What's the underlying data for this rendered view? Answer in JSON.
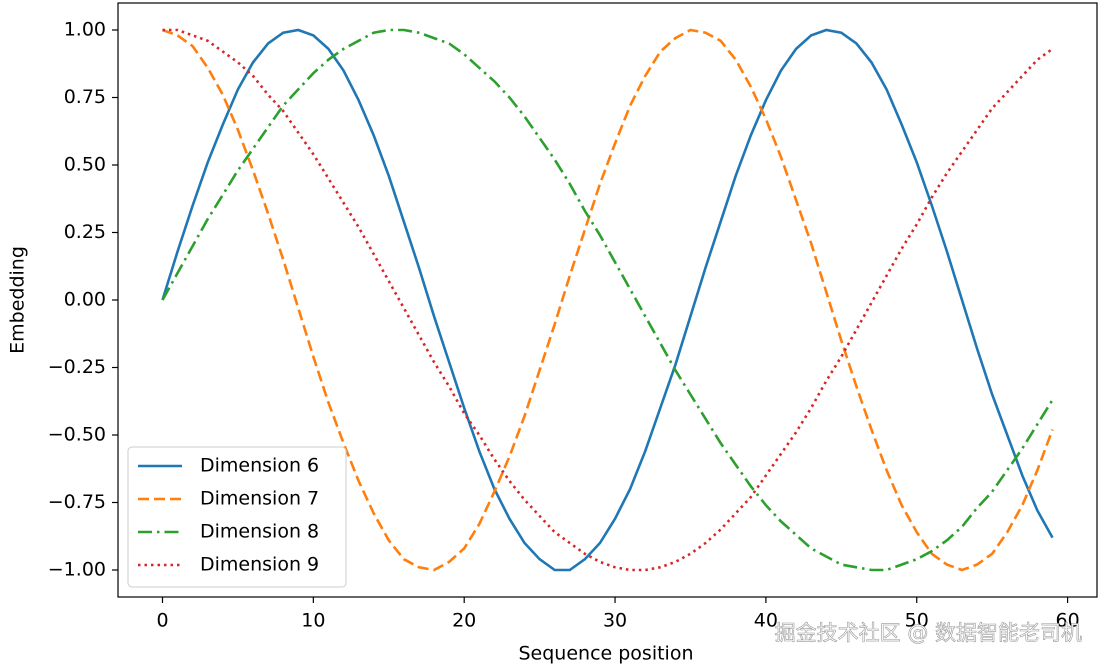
{
  "chart_data": {
    "type": "line",
    "xlabel": "Sequence position",
    "ylabel": "Embedding",
    "x": [
      0,
      1,
      2,
      3,
      4,
      5,
      6,
      7,
      8,
      9,
      10,
      11,
      12,
      13,
      14,
      15,
      16,
      17,
      18,
      19,
      20,
      21,
      22,
      23,
      24,
      25,
      26,
      27,
      28,
      29,
      30,
      31,
      32,
      33,
      34,
      35,
      36,
      37,
      38,
      39,
      40,
      41,
      42,
      43,
      44,
      45,
      46,
      47,
      48,
      49,
      50,
      51,
      52,
      53,
      54,
      55,
      56,
      57,
      58,
      59
    ],
    "series": [
      {
        "name": "Dimension 6",
        "color": "#1f77b4",
        "linestyle": "solid",
        "values": [
          0,
          0.18,
          0.35,
          0.51,
          0.65,
          0.78,
          0.88,
          0.95,
          0.99,
          1.0,
          0.98,
          0.93,
          0.85,
          0.74,
          0.61,
          0.46,
          0.29,
          0.12,
          -0.06,
          -0.23,
          -0.4,
          -0.56,
          -0.7,
          -0.81,
          -0.9,
          -0.96,
          -1.0,
          -1.0,
          -0.96,
          -0.9,
          -0.81,
          -0.7,
          -0.56,
          -0.4,
          -0.24,
          -0.06,
          0.12,
          0.29,
          0.46,
          0.61,
          0.74,
          0.85,
          0.93,
          0.98,
          1.0,
          0.99,
          0.95,
          0.88,
          0.78,
          0.65,
          0.51,
          0.35,
          0.18,
          0.0,
          -0.18,
          -0.35,
          -0.5,
          -0.65,
          -0.78,
          -0.88
        ]
      },
      {
        "name": "Dimension 7",
        "color": "#ff7f0e",
        "linestyle": "dashed",
        "values": [
          1,
          0.98,
          0.94,
          0.86,
          0.76,
          0.63,
          0.48,
          0.32,
          0.15,
          -0.03,
          -0.21,
          -0.38,
          -0.53,
          -0.67,
          -0.79,
          -0.89,
          -0.96,
          -0.99,
          -1.0,
          -0.97,
          -0.92,
          -0.83,
          -0.71,
          -0.58,
          -0.43,
          -0.26,
          -0.09,
          0.09,
          0.26,
          0.43,
          0.58,
          0.72,
          0.83,
          0.92,
          0.97,
          1.0,
          0.99,
          0.96,
          0.89,
          0.79,
          0.67,
          0.53,
          0.37,
          0.21,
          0.03,
          -0.15,
          -0.32,
          -0.48,
          -0.63,
          -0.76,
          -0.86,
          -0.94,
          -0.98,
          -1.0,
          -0.98,
          -0.94,
          -0.86,
          -0.76,
          -0.63,
          -0.48
        ]
      },
      {
        "name": "Dimension 8",
        "color": "#2ca02c",
        "linestyle": "dashdot",
        "values": [
          0,
          0.1,
          0.2,
          0.3,
          0.39,
          0.48,
          0.56,
          0.64,
          0.72,
          0.78,
          0.84,
          0.89,
          0.93,
          0.96,
          0.99,
          1.0,
          1.0,
          0.99,
          0.97,
          0.95,
          0.91,
          0.86,
          0.81,
          0.75,
          0.68,
          0.6,
          0.52,
          0.43,
          0.33,
          0.24,
          0.14,
          0.04,
          -0.06,
          -0.16,
          -0.26,
          -0.35,
          -0.44,
          -0.53,
          -0.61,
          -0.69,
          -0.76,
          -0.82,
          -0.87,
          -0.92,
          -0.95,
          -0.98,
          -0.99,
          -1.0,
          -1.0,
          -0.98,
          -0.96,
          -0.93,
          -0.89,
          -0.84,
          -0.77,
          -0.71,
          -0.63,
          -0.55,
          -0.46,
          -0.37
        ]
      },
      {
        "name": "Dimension 9",
        "color": "#d62728",
        "linestyle": "dotted",
        "values": [
          1,
          1.0,
          0.98,
          0.96,
          0.92,
          0.88,
          0.83,
          0.76,
          0.7,
          0.62,
          0.54,
          0.45,
          0.36,
          0.27,
          0.17,
          0.07,
          -0.03,
          -0.13,
          -0.23,
          -0.32,
          -0.42,
          -0.5,
          -0.59,
          -0.67,
          -0.74,
          -0.8,
          -0.86,
          -0.9,
          -0.94,
          -0.97,
          -0.99,
          -1.0,
          -1.0,
          -0.99,
          -0.97,
          -0.94,
          -0.9,
          -0.85,
          -0.79,
          -0.73,
          -0.65,
          -0.57,
          -0.49,
          -0.4,
          -0.3,
          -0.21,
          -0.11,
          -0.01,
          0.09,
          0.19,
          0.28,
          0.38,
          0.47,
          0.55,
          0.63,
          0.71,
          0.77,
          0.83,
          0.89,
          0.93
        ]
      }
    ],
    "xlim": [
      -2.95,
      61.95
    ],
    "xticks": [
      0,
      10,
      20,
      30,
      40,
      50,
      60
    ],
    "ylim": [
      -1.1,
      1.1
    ],
    "yticks": [
      {
        "value": -1,
        "label": "−1.00"
      },
      {
        "value": -0.75,
        "label": "−0.75"
      },
      {
        "value": -0.5,
        "label": "−0.50"
      },
      {
        "value": -0.25,
        "label": "−0.25"
      },
      {
        "value": 0,
        "label": "0.00"
      },
      {
        "value": 0.25,
        "label": "0.25"
      },
      {
        "value": 0.5,
        "label": "0.50"
      },
      {
        "value": 0.75,
        "label": "0.75"
      },
      {
        "value": 1,
        "label": "1.00"
      }
    ],
    "legend": "lower left",
    "grid": false,
    "watermark": "掘金技术社区 @ 数据智能老司机"
  }
}
